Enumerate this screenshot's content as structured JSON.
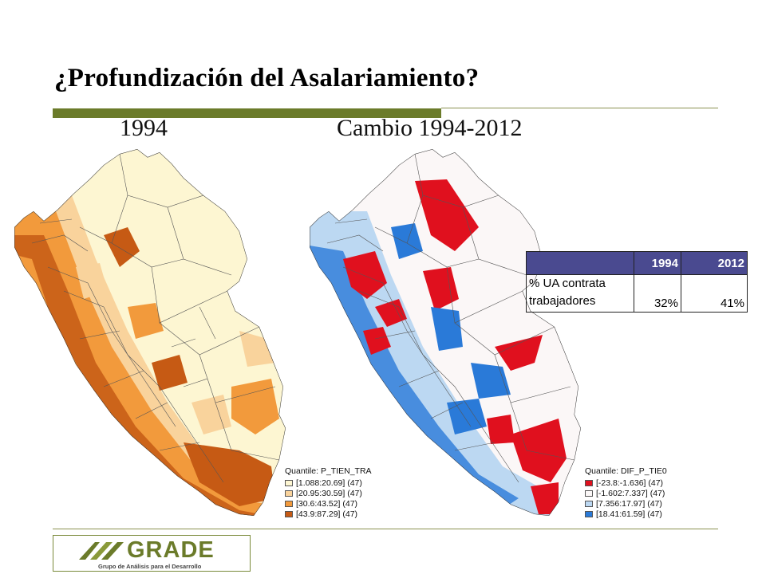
{
  "slide": {
    "title": "¿Profundización del Asalariamiento?",
    "subtitle_left": "1994",
    "subtitle_right": "Cambio 1994-2012"
  },
  "maps": [
    {
      "legend_title": "Quantile: P_TIEN_TRA",
      "classes": [
        {
          "label": "[1.088:20.69] (47)",
          "color": "#fdf6d2"
        },
        {
          "label": "[20.95:30.59] (47)",
          "color": "#f9d39c"
        },
        {
          "label": "[30.6:43.52] (47)",
          "color": "#f29a3c"
        },
        {
          "label": "[43.9:87.29] (47)",
          "color": "#c65a14"
        }
      ]
    },
    {
      "legend_title": "Quantile: DIF_P_TIE0",
      "classes": [
        {
          "label": "[-23.8:-1.636] (47)",
          "color": "#e0101e"
        },
        {
          "label": "[-1.602:7.337] (47)",
          "color": "#fbf7f7"
        },
        {
          "label": "[7.356:17.97] (47)",
          "color": "#bcd8f2"
        },
        {
          "label": "[18.41:61.59] (47)",
          "color": "#2a7ad8"
        }
      ]
    }
  ],
  "table": {
    "headers": [
      "",
      "1994",
      "2012"
    ],
    "row_label": "% UA contrata trabajadores",
    "values": [
      "32%",
      "41%"
    ]
  },
  "logo": {
    "name": "GRADE",
    "tagline": "Grupo de Análisis para el Desarrollo",
    "color": "#6b7b2a"
  }
}
